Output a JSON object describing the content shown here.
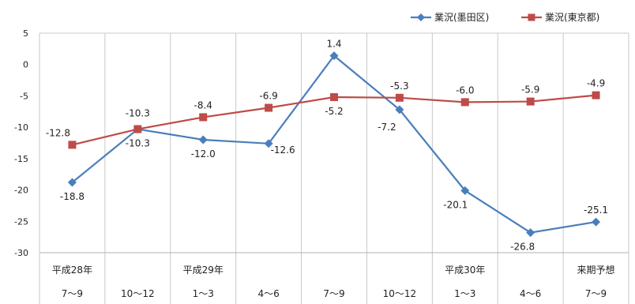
{
  "chart_data": {
    "type": "line",
    "x": [
      "7〜9",
      "10〜12",
      "1〜3",
      "4〜6",
      "7〜9",
      "10〜12",
      "1〜3",
      "4〜6",
      "7〜9"
    ],
    "group_labels": [
      "平成28年",
      "",
      "平成29年",
      "",
      "",
      "",
      "平成30年",
      "",
      "来期予想"
    ],
    "series": [
      {
        "name": "業況(墨田区)",
        "color": "#4a7ebb",
        "marker": "diamond",
        "values": [
          -18.8,
          -10.3,
          -12.0,
          -12.6,
          1.4,
          -7.2,
          -20.1,
          -26.8,
          -25.1
        ],
        "labels": [
          "-18.8",
          "-10.3",
          "-12.0",
          "-12.6",
          "1.4",
          "-7.2",
          "-20.1",
          "-26.8",
          "-25.1"
        ]
      },
      {
        "name": "業況(東京都)",
        "color": "#be4b48",
        "marker": "square",
        "values": [
          -12.8,
          -10.3,
          -8.4,
          -6.9,
          -5.2,
          -5.3,
          -6.0,
          -5.9,
          -4.9
        ],
        "labels": [
          "-12.8",
          "-10.3",
          "-8.4",
          "-6.9",
          "-5.2",
          "-5.3",
          "-6.0",
          "-5.9",
          "-4.9"
        ]
      }
    ],
    "ylim": [
      -30,
      5
    ],
    "yticks": [
      5,
      0,
      -5,
      -10,
      -15,
      -20,
      -25,
      -30
    ],
    "grid": "vertical",
    "legend": "top-right"
  }
}
